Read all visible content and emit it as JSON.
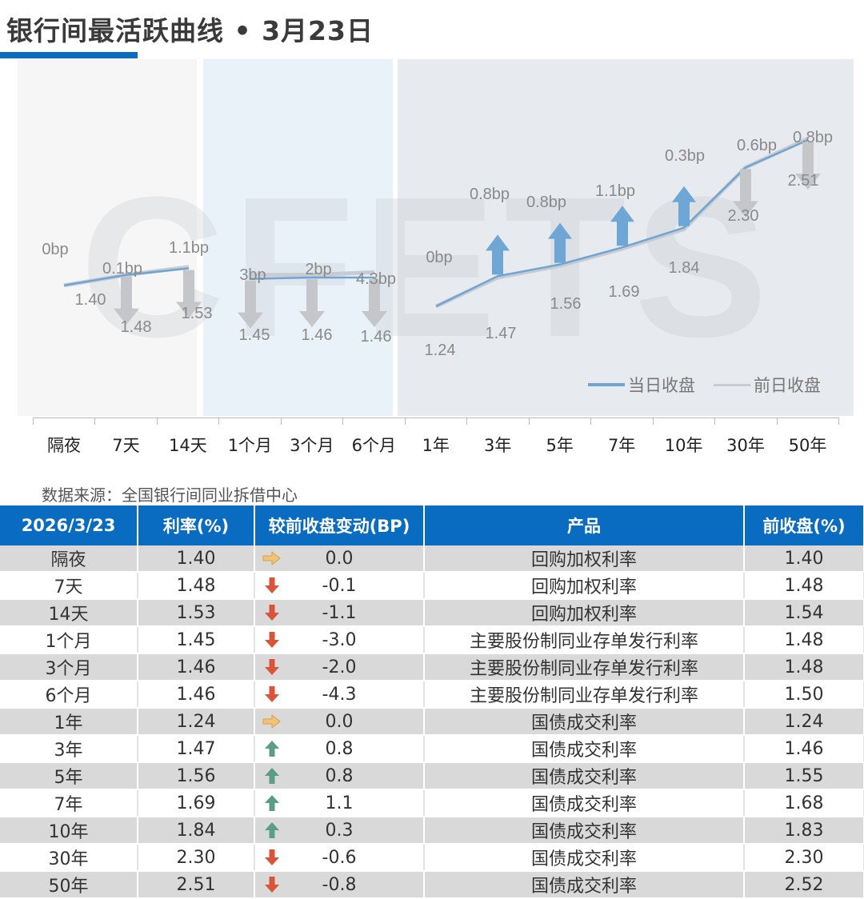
{
  "header": {
    "title": "银行间最活跃曲线 • 3月23日",
    "accent_color": "#0a6cc0"
  },
  "legend": {
    "today": "当日收盘",
    "prev": "前日收盘",
    "today_color": "#6fa5d4",
    "prev_color": "#c8ccd2"
  },
  "watermark": "CFETS",
  "source": "数据来源：全国银行间同业拆借中心",
  "chart_data": {
    "type": "line",
    "title": "银行间最活跃曲线 • 3月23日",
    "categories": [
      "隔夜",
      "7天",
      "14天",
      "1个月",
      "3个月",
      "6个月",
      "1年",
      "3年",
      "5年",
      "7年",
      "10年",
      "30年",
      "50年"
    ],
    "series": [
      {
        "name": "当日收盘",
        "values": [
          1.4,
          1.48,
          1.53,
          1.45,
          1.46,
          1.46,
          1.24,
          1.47,
          1.56,
          1.69,
          1.84,
          2.3,
          2.51
        ]
      },
      {
        "name": "前日收盘",
        "values": [
          1.4,
          1.48,
          1.54,
          1.48,
          1.48,
          1.5,
          1.24,
          1.46,
          1.55,
          1.68,
          1.83,
          2.3,
          2.52
        ]
      }
    ],
    "change_labels": [
      "0bp",
      "0.1bp",
      "1.1bp",
      "3bp",
      "2bp",
      "4.3bp",
      "0bp",
      "0.8bp",
      "0.8bp",
      "1.1bp",
      "0.3bp",
      "0.6bp",
      "0.8bp"
    ],
    "value_labels": [
      "1.40",
      "1.48",
      "1.53",
      "1.45",
      "1.46",
      "1.46",
      "1.24",
      "1.47",
      "1.56",
      "1.69",
      "1.84",
      "2.30",
      "2.51"
    ],
    "change_direction": [
      "flat",
      "down",
      "down",
      "down",
      "down",
      "down",
      "flat",
      "up",
      "up",
      "up",
      "up",
      "down",
      "down"
    ],
    "groups": [
      {
        "name": "回购加权利率",
        "range": [
          "隔夜",
          "14天"
        ]
      },
      {
        "name": "主要股份制同业存单发行利率",
        "range": [
          "1个月",
          "6个月"
        ]
      },
      {
        "name": "国债成交利率",
        "range": [
          "1年",
          "50年"
        ]
      }
    ],
    "xlabel": "",
    "ylabel": "",
    "grid": false,
    "legend_position": "bottom-right inside"
  },
  "table": {
    "headers": [
      "2026/3/23",
      "利率(%)",
      "较前收盘变动(BP)",
      "产品",
      "前收盘(%)"
    ],
    "rows": [
      {
        "term": "隔夜",
        "rate": "1.40",
        "dir": "flat",
        "change": "0.0",
        "product": "回购加权利率",
        "prev": "1.40"
      },
      {
        "term": "7天",
        "rate": "1.48",
        "dir": "down",
        "change": "-0.1",
        "product": "回购加权利率",
        "prev": "1.48"
      },
      {
        "term": "14天",
        "rate": "1.53",
        "dir": "down",
        "change": "-1.1",
        "product": "回购加权利率",
        "prev": "1.54"
      },
      {
        "term": "1个月",
        "rate": "1.45",
        "dir": "down",
        "change": "-3.0",
        "product": "主要股份制同业存单发行利率",
        "prev": "1.48"
      },
      {
        "term": "3个月",
        "rate": "1.46",
        "dir": "down",
        "change": "-2.0",
        "product": "主要股份制同业存单发行利率",
        "prev": "1.48"
      },
      {
        "term": "6个月",
        "rate": "1.46",
        "dir": "down",
        "change": "-4.3",
        "product": "主要股份制同业存单发行利率",
        "prev": "1.50"
      },
      {
        "term": "1年",
        "rate": "1.24",
        "dir": "flat",
        "change": "0.0",
        "product": "国债成交利率",
        "prev": "1.24"
      },
      {
        "term": "3年",
        "rate": "1.47",
        "dir": "up",
        "change": "0.8",
        "product": "国债成交利率",
        "prev": "1.46"
      },
      {
        "term": "5年",
        "rate": "1.56",
        "dir": "up",
        "change": "0.8",
        "product": "国债成交利率",
        "prev": "1.55"
      },
      {
        "term": "7年",
        "rate": "1.69",
        "dir": "up",
        "change": "1.1",
        "product": "国债成交利率",
        "prev": "1.68"
      },
      {
        "term": "10年",
        "rate": "1.84",
        "dir": "up",
        "change": "0.3",
        "product": "国债成交利率",
        "prev": "1.83"
      },
      {
        "term": "30年",
        "rate": "2.30",
        "dir": "down",
        "change": "-0.6",
        "product": "国债成交利率",
        "prev": "2.30"
      },
      {
        "term": "50年",
        "rate": "2.51",
        "dir": "down",
        "change": "-0.8",
        "product": "国债成交利率",
        "prev": "2.52"
      }
    ]
  },
  "icons": {
    "up": "arrow-up-icon",
    "down": "arrow-down-icon",
    "flat": "arrow-right-icon",
    "up_color": "#5a9e86",
    "down_color": "#d9553a",
    "flat_color": "#e8b25a"
  }
}
